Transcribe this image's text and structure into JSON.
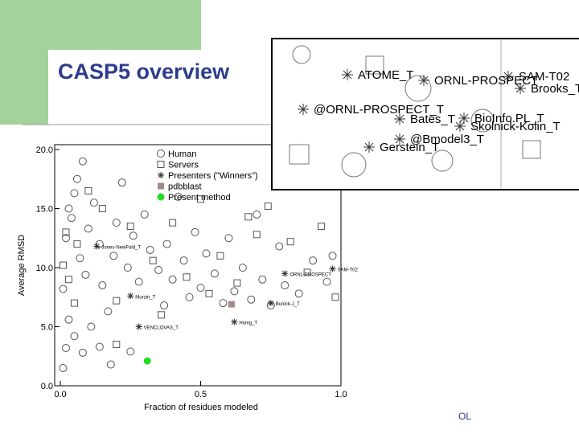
{
  "slide": {
    "title": "CASP5 overview",
    "footer": "OL"
  },
  "chart_data": {
    "type": "scatter",
    "xlabel": "Fraction of residues modeled",
    "ylabel": "Average RMSD",
    "xlim": [
      0,
      1
    ],
    "ylim": [
      0,
      20
    ],
    "xticks": [
      {
        "value": 0,
        "label": "0.0"
      },
      {
        "value": 0.5,
        "label": "0.5"
      },
      {
        "value": 1,
        "label": "1.0"
      }
    ],
    "yticks": [
      {
        "value": 0,
        "label": "0.0"
      },
      {
        "value": 5,
        "label": "5.0"
      },
      {
        "value": 10,
        "label": "10.0"
      },
      {
        "value": 15,
        "label": "15.0"
      },
      {
        "value": 20,
        "label": "20.0"
      }
    ],
    "series": [
      {
        "name": "Human",
        "marker": "circle",
        "color": "#555555",
        "x": [
          0.01,
          0.02,
          0.03,
          0.01,
          0.02,
          0.04,
          0.05,
          0.06,
          0.08,
          0.03,
          0.07,
          0.09,
          0.1,
          0.12,
          0.14,
          0.15,
          0.17,
          0.19,
          0.2,
          0.22,
          0.24,
          0.26,
          0.28,
          0.3,
          0.32,
          0.35,
          0.37,
          0.38,
          0.4,
          0.42,
          0.44,
          0.46,
          0.48,
          0.5,
          0.52,
          0.55,
          0.58,
          0.6,
          0.62,
          0.65,
          0.68,
          0.7,
          0.72,
          0.75,
          0.78,
          0.8,
          0.85,
          0.9,
          0.95,
          0.97,
          0.05,
          0.08,
          0.11,
          0.14,
          0.25,
          0.18
        ],
        "values": [
          1.5,
          3.2,
          5.6,
          8.2,
          12.5,
          14.2,
          16.3,
          17.5,
          19.0,
          15.0,
          10.8,
          9.4,
          13.3,
          15.5,
          12.0,
          8.5,
          6.3,
          11.0,
          13.8,
          17.2,
          10.0,
          12.7,
          8.8,
          14.5,
          11.5,
          9.8,
          6.8,
          12.0,
          9.0,
          16.0,
          10.6,
          7.5,
          13.0,
          8.3,
          11.2,
          9.5,
          7.0,
          12.5,
          8.0,
          10.0,
          7.3,
          14.5,
          9.0,
          6.8,
          11.8,
          8.5,
          7.8,
          10.6,
          8.8,
          11.0,
          4.2,
          2.8,
          5.0,
          3.3,
          2.9,
          1.8
        ]
      },
      {
        "name": "Servers",
        "marker": "square",
        "color": "#555555",
        "x": [
          0.01,
          0.02,
          0.03,
          0.05,
          0.06,
          0.1,
          0.15,
          0.2,
          0.25,
          0.33,
          0.36,
          0.4,
          0.45,
          0.5,
          0.53,
          0.57,
          0.63,
          0.67,
          0.7,
          0.74,
          0.82,
          0.88,
          0.93,
          0.98,
          0.2
        ],
        "values": [
          10.2,
          13.0,
          9.0,
          7.0,
          12.0,
          16.5,
          15.0,
          7.2,
          13.5,
          10.6,
          6.0,
          13.8,
          9.2,
          15.8,
          7.8,
          11.0,
          8.7,
          14.3,
          12.8,
          15.2,
          12.2,
          9.6,
          13.5,
          7.5,
          3.5
        ]
      },
      {
        "name": "Presenters (\"Winners\")",
        "marker": "asterisk",
        "color": "#333333",
        "x": [
          0.13,
          0.25,
          0.28,
          0.62,
          0.75,
          0.8,
          0.97
        ],
        "values": [
          11.8,
          7.6,
          5.0,
          5.4,
          7.0,
          9.5,
          9.9
        ],
        "point_labels": [
          "Jones-NewFold_T",
          "Murzin_T",
          "VENCLOVAS_T",
          "Honig_T",
          "Bunick-J_T",
          "ORNL-PROSPECT",
          "SAM-T02"
        ]
      },
      {
        "name": "pdbblast",
        "marker": "filled-square",
        "color": "#a08c88",
        "x": [
          0.61
        ],
        "values": [
          6.9
        ]
      },
      {
        "name": "Present method",
        "marker": "filled-circle",
        "color": "#22dd22",
        "x": [
          0.31
        ],
        "values": [
          2.1
        ]
      }
    ]
  },
  "inset": {
    "labels": [
      "ATOME_T",
      "ORNL-PROSPECT",
      "SAM-T02",
      "Brooks_T",
      "@ORNL-PROSPECT_T",
      "Bates_T",
      "BioInfo.PL_T",
      "Skolnick-Kolin_T",
      "Gerstein_T",
      "@Bmodel3_T"
    ]
  }
}
